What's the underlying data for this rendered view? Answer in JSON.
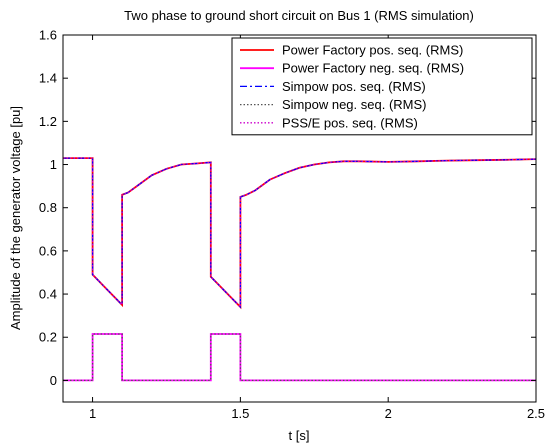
{
  "chart_data": {
    "type": "line",
    "title": "Two phase to ground short circuit on Bus 1 (RMS simulation)",
    "xlabel": "t [s]",
    "ylabel": "Amplitude of the generator voltage [pu]",
    "xlim": [
      0.9,
      2.5
    ],
    "ylim": [
      -0.1,
      1.6
    ],
    "xticks": [
      1,
      1.5,
      2,
      2.5
    ],
    "xtick_labels": [
      "1",
      "1.5",
      "2",
      "2.5"
    ],
    "yticks": [
      0,
      0.2,
      0.4,
      0.6,
      0.8,
      1,
      1.2,
      1.4,
      1.6
    ],
    "ytick_labels": [
      "0",
      "0.2",
      "0.4",
      "0.6",
      "0.8",
      "1",
      "1.2",
      "1.4",
      "1.6"
    ],
    "grid": false,
    "legend_position": "top-right",
    "series": [
      {
        "name": "Power Factory pos. seq. (RMS)",
        "color": "#ff0000",
        "dash": "solid",
        "x": [
          0.9,
          0.995,
          1.0,
          1.0,
          1.05,
          1.1,
          1.1,
          1.12,
          1.15,
          1.2,
          1.25,
          1.3,
          1.35,
          1.4,
          1.4,
          1.45,
          1.5,
          1.5,
          1.52,
          1.55,
          1.6,
          1.65,
          1.7,
          1.75,
          1.8,
          1.85,
          1.9,
          2.0,
          2.1,
          2.2,
          2.3,
          2.4,
          2.5
        ],
        "y": [
          1.03,
          1.03,
          1.03,
          0.49,
          0.42,
          0.35,
          0.86,
          0.87,
          0.9,
          0.95,
          0.98,
          1.0,
          1.005,
          1.01,
          0.48,
          0.41,
          0.34,
          0.85,
          0.86,
          0.88,
          0.93,
          0.96,
          0.985,
          1.0,
          1.01,
          1.015,
          1.015,
          1.012,
          1.015,
          1.018,
          1.02,
          1.022,
          1.025
        ]
      },
      {
        "name": "Power Factory neg. seq. (RMS)",
        "color": "#ff00ff",
        "dash": "solid",
        "x": [
          0.9,
          1.0,
          1.0,
          1.1,
          1.1,
          1.4,
          1.4,
          1.5,
          1.5,
          2.5
        ],
        "y": [
          0,
          0,
          0.215,
          0.215,
          0,
          0,
          0.215,
          0.215,
          0,
          0
        ]
      },
      {
        "name": "Simpow pos. seq. (RMS)",
        "color": "#0000ff",
        "dash": "dashdot",
        "x": [
          0.9,
          0.995,
          1.0,
          1.0,
          1.05,
          1.1,
          1.1,
          1.12,
          1.15,
          1.2,
          1.25,
          1.3,
          1.35,
          1.4,
          1.4,
          1.45,
          1.5,
          1.5,
          1.52,
          1.55,
          1.6,
          1.65,
          1.7,
          1.75,
          1.8,
          1.85,
          1.9,
          2.0,
          2.1,
          2.2,
          2.3,
          2.4,
          2.5
        ],
        "y": [
          1.03,
          1.03,
          1.03,
          0.49,
          0.42,
          0.35,
          0.86,
          0.87,
          0.9,
          0.95,
          0.98,
          1.0,
          1.005,
          1.01,
          0.48,
          0.41,
          0.34,
          0.85,
          0.86,
          0.88,
          0.93,
          0.96,
          0.985,
          1.0,
          1.01,
          1.015,
          1.015,
          1.012,
          1.015,
          1.018,
          1.02,
          1.022,
          1.025
        ]
      },
      {
        "name": "Simpow neg. seq. (RMS)",
        "color": "#555555",
        "dash": "dotted",
        "x": [
          0.9,
          1.0,
          1.0,
          1.1,
          1.1,
          1.4,
          1.4,
          1.5,
          1.5,
          2.5
        ],
        "y": [
          0,
          0,
          0.215,
          0.215,
          0,
          0,
          0.215,
          0.215,
          0,
          0
        ]
      },
      {
        "name": "PSS/E pos. seq. (RMS)",
        "color": "#cc00cc",
        "dash": "dotted",
        "x": [
          0.9,
          0.995,
          1.0,
          1.0,
          1.05,
          1.1,
          1.1,
          1.12,
          1.15,
          1.2,
          1.25,
          1.3,
          1.35,
          1.4,
          1.4,
          1.45,
          1.5,
          1.5,
          1.52,
          1.55,
          1.6,
          1.65,
          1.7,
          1.75,
          1.8,
          1.85,
          1.9,
          2.0,
          2.1,
          2.2,
          2.3,
          2.4,
          2.5
        ],
        "y": [
          1.03,
          1.03,
          1.03,
          0.49,
          0.42,
          0.35,
          0.86,
          0.87,
          0.9,
          0.95,
          0.98,
          1.0,
          1.005,
          1.01,
          0.48,
          0.41,
          0.34,
          0.85,
          0.86,
          0.88,
          0.93,
          0.96,
          0.985,
          1.0,
          1.01,
          1.015,
          1.015,
          1.012,
          1.015,
          1.018,
          1.02,
          1.022,
          1.025
        ]
      }
    ]
  }
}
